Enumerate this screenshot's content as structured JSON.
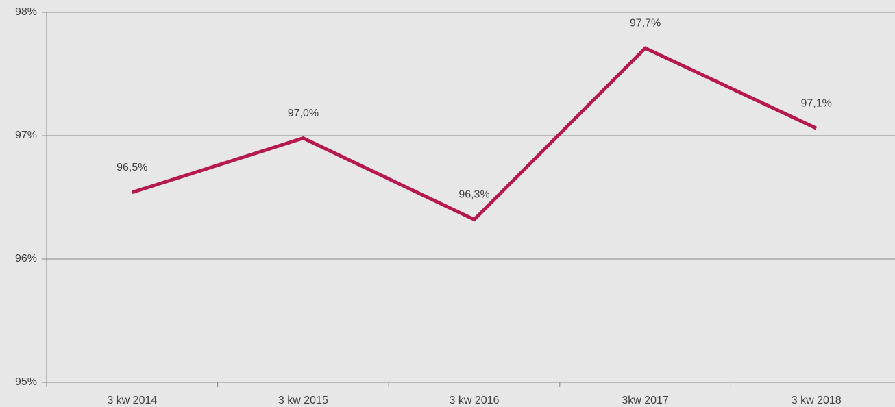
{
  "chart_data": {
    "type": "line",
    "categories": [
      "3 kw 2014",
      "3 kw 2015",
      "3 kw 2016",
      "3kw 2017",
      "3 kw 2018"
    ],
    "series": [
      {
        "name": null,
        "color": "#b5194f",
        "values": [
          96.54,
          96.98,
          96.32,
          97.71,
          97.06
        ],
        "value_labels": [
          "96,5%",
          "97,0%",
          "96,3%",
          "97,7%",
          "97,1%"
        ]
      }
    ],
    "ylim": [
      95,
      98
    ],
    "yticks": [
      {
        "value": 95,
        "label": "95%"
      },
      {
        "value": 96,
        "label": "96%"
      },
      {
        "value": 97,
        "label": "97%"
      },
      {
        "value": 98,
        "label": "98%"
      }
    ],
    "grid": true
  }
}
